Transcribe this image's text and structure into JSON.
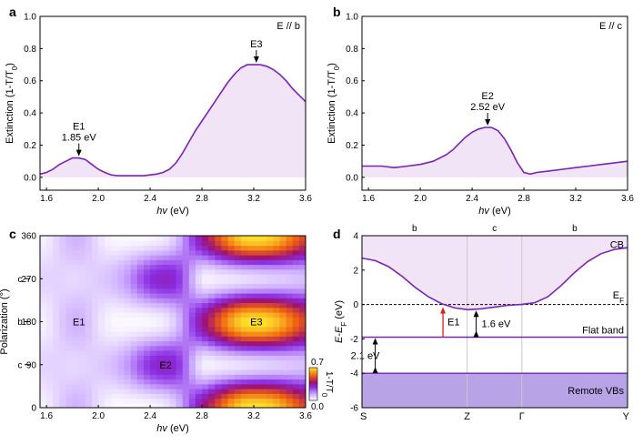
{
  "colors": {
    "line": "#7b22b4",
    "fill": "#f1e4f7",
    "red_arrow": "#e31a1c",
    "remote_fill": "#b7a3e6",
    "grid": "#c8c8c8"
  },
  "panel_labels": [
    "a",
    "b",
    "c",
    "d"
  ],
  "chart_data": [
    {
      "panel": "a",
      "type": "area",
      "tag": "E // b",
      "xlabel_italic": "hv",
      "xlabel_unit": " (eV)",
      "ylabel": "Extinction (1-T/T",
      "ylabel_sub": "0",
      "ylabel_end": ")",
      "xlim": [
        1.55,
        3.6
      ],
      "ylim": [
        -0.08,
        1.0
      ],
      "x_ticks": [
        1.6,
        2.0,
        2.4,
        2.8,
        3.2,
        3.6
      ],
      "x_tick_labels": [
        "1.6",
        "2.0",
        "2.4",
        "2.8",
        "3.2",
        "3.6"
      ],
      "y_ticks": [
        0.0,
        0.2,
        0.4,
        0.6,
        0.8,
        1.0
      ],
      "y_tick_labels": [
        "0.0",
        "0.2",
        "0.4",
        "0.6",
        "0.8",
        "1.0"
      ],
      "x": [
        1.55,
        1.6,
        1.65,
        1.7,
        1.75,
        1.8,
        1.85,
        1.9,
        1.95,
        2.0,
        2.05,
        2.1,
        2.15,
        2.2,
        2.25,
        2.3,
        2.35,
        2.4,
        2.45,
        2.5,
        2.55,
        2.6,
        2.65,
        2.7,
        2.75,
        2.8,
        2.85,
        2.9,
        2.95,
        3.0,
        3.05,
        3.1,
        3.15,
        3.2,
        3.25,
        3.3,
        3.35,
        3.4,
        3.45,
        3.5,
        3.55,
        3.6
      ],
      "y": [
        0.02,
        0.03,
        0.05,
        0.08,
        0.1,
        0.12,
        0.12,
        0.11,
        0.08,
        0.05,
        0.03,
        0.015,
        0.01,
        0.01,
        0.01,
        0.01,
        0.01,
        0.015,
        0.02,
        0.03,
        0.05,
        0.09,
        0.15,
        0.22,
        0.29,
        0.35,
        0.41,
        0.47,
        0.53,
        0.59,
        0.64,
        0.68,
        0.7,
        0.7,
        0.7,
        0.69,
        0.67,
        0.64,
        0.6,
        0.55,
        0.51,
        0.47
      ],
      "annotations": [
        {
          "name": "E1",
          "value": "1.85 eV",
          "x": 1.85,
          "y": 0.12
        },
        {
          "name": "E3",
          "value": "",
          "x": 3.22,
          "y": 0.7
        }
      ]
    },
    {
      "panel": "b",
      "type": "area",
      "tag": "E // c",
      "xlabel_italic": "hv",
      "xlabel_unit": " (eV)",
      "ylabel": "Extinction (1-T/T",
      "ylabel_sub": "0",
      "ylabel_end": ")",
      "xlim": [
        1.55,
        3.6
      ],
      "ylim": [
        -0.08,
        1.0
      ],
      "x_ticks": [
        1.6,
        2.0,
        2.4,
        2.8,
        3.2,
        3.6
      ],
      "x_tick_labels": [
        "1.6",
        "2.0",
        "2.4",
        "2.8",
        "3.2",
        "3.6"
      ],
      "y_ticks": [
        0.0,
        0.2,
        0.4,
        0.6,
        0.8,
        1.0
      ],
      "y_tick_labels": [
        "0.0",
        "0.2",
        "0.4",
        "0.6",
        "0.8",
        "1.0"
      ],
      "x": [
        1.55,
        1.6,
        1.7,
        1.8,
        1.9,
        2.0,
        2.1,
        2.2,
        2.25,
        2.3,
        2.35,
        2.4,
        2.45,
        2.5,
        2.55,
        2.6,
        2.65,
        2.7,
        2.75,
        2.8,
        2.85,
        2.9,
        3.0,
        3.1,
        3.2,
        3.3,
        3.4,
        3.5,
        3.6
      ],
      "y": [
        0.07,
        0.07,
        0.07,
        0.06,
        0.07,
        0.08,
        0.1,
        0.14,
        0.17,
        0.21,
        0.25,
        0.28,
        0.3,
        0.31,
        0.31,
        0.29,
        0.24,
        0.17,
        0.09,
        0.03,
        0.02,
        0.03,
        0.04,
        0.05,
        0.06,
        0.07,
        0.08,
        0.09,
        0.1
      ],
      "annotations": [
        {
          "name": "E2",
          "value": "2.52 eV",
          "x": 2.52,
          "y": 0.31
        }
      ]
    },
    {
      "panel": "c",
      "type": "heatmap",
      "xlabel_italic": "hv",
      "xlabel_unit": " (eV)",
      "ylabel": "Polarization (°)",
      "xlim": [
        1.55,
        3.6
      ],
      "ylim": [
        0,
        360
      ],
      "x_ticks": [
        1.6,
        2.0,
        2.4,
        2.8,
        3.2,
        3.6
      ],
      "x_tick_labels": [
        "1.6",
        "2.0",
        "2.4",
        "2.8",
        "3.2",
        "3.6"
      ],
      "y_ticks": [
        0,
        90,
        180,
        270,
        360
      ],
      "y_tick_labels": [
        "0",
        "90",
        "180",
        "270",
        "360"
      ],
      "axis_letters": [
        {
          "angle": 90,
          "text": "c"
        },
        {
          "angle": 180,
          "text": "b"
        },
        {
          "angle": 270,
          "text": "c"
        }
      ],
      "colorbar": {
        "label": "1-T/T",
        "label_sub": "0",
        "max_label": "0.7",
        "min_label": "0.0",
        "range": [
          0.0,
          0.7
        ]
      },
      "region_labels": [
        {
          "text": "E1",
          "x": 1.85,
          "y": 180
        },
        {
          "text": "E2",
          "x": 2.52,
          "y": 90
        },
        {
          "text": "E3",
          "x": 3.22,
          "y": 180
        }
      ]
    },
    {
      "panel": "d",
      "type": "line",
      "ylabel": "E-E",
      "ylabel_sub": "F",
      "ylabel_unit": " (eV)",
      "ylim": [
        -6,
        4
      ],
      "y_ticks": [
        -6,
        -4,
        -2,
        0,
        2,
        4
      ],
      "y_tick_labels": [
        "-6",
        "-4",
        "-2",
        "0",
        "2",
        "4"
      ],
      "kpoints": [
        "S",
        "Z",
        "Γ",
        "Y"
      ],
      "kpos": [
        0,
        0.396,
        0.602,
        1.0
      ],
      "directions": [
        "b",
        "c",
        "b"
      ],
      "cb_k": [
        0.0,
        0.05,
        0.1,
        0.15,
        0.2,
        0.25,
        0.3,
        0.35,
        0.4,
        0.45,
        0.5,
        0.55,
        0.6,
        0.65,
        0.7,
        0.75,
        0.8,
        0.85,
        0.9,
        0.95,
        1.0
      ],
      "cb_e": [
        2.7,
        2.55,
        2.2,
        1.65,
        1.0,
        0.45,
        0.05,
        -0.2,
        -0.3,
        -0.25,
        -0.15,
        -0.05,
        0.0,
        0.1,
        0.45,
        1.1,
        1.85,
        2.5,
        2.95,
        3.2,
        3.3
      ],
      "fermi_level": 0,
      "flat_band": -1.9,
      "remote_vb_top": -4.0,
      "band_labels": {
        "cb": "CB",
        "ef": "E",
        "ef_sub": "F",
        "flat": "Flat band",
        "remote": "Remote VBs"
      },
      "arrows": [
        {
          "label": "E1",
          "k": 0.305,
          "from": -1.9,
          "to": -0.1
        },
        {
          "label": "1.6 eV",
          "k": 0.43,
          "from": -1.9,
          "to": -0.3
        },
        {
          "label": "2.1 eV",
          "k": 0.05,
          "from": -4.0,
          "to": -1.9
        }
      ]
    }
  ]
}
